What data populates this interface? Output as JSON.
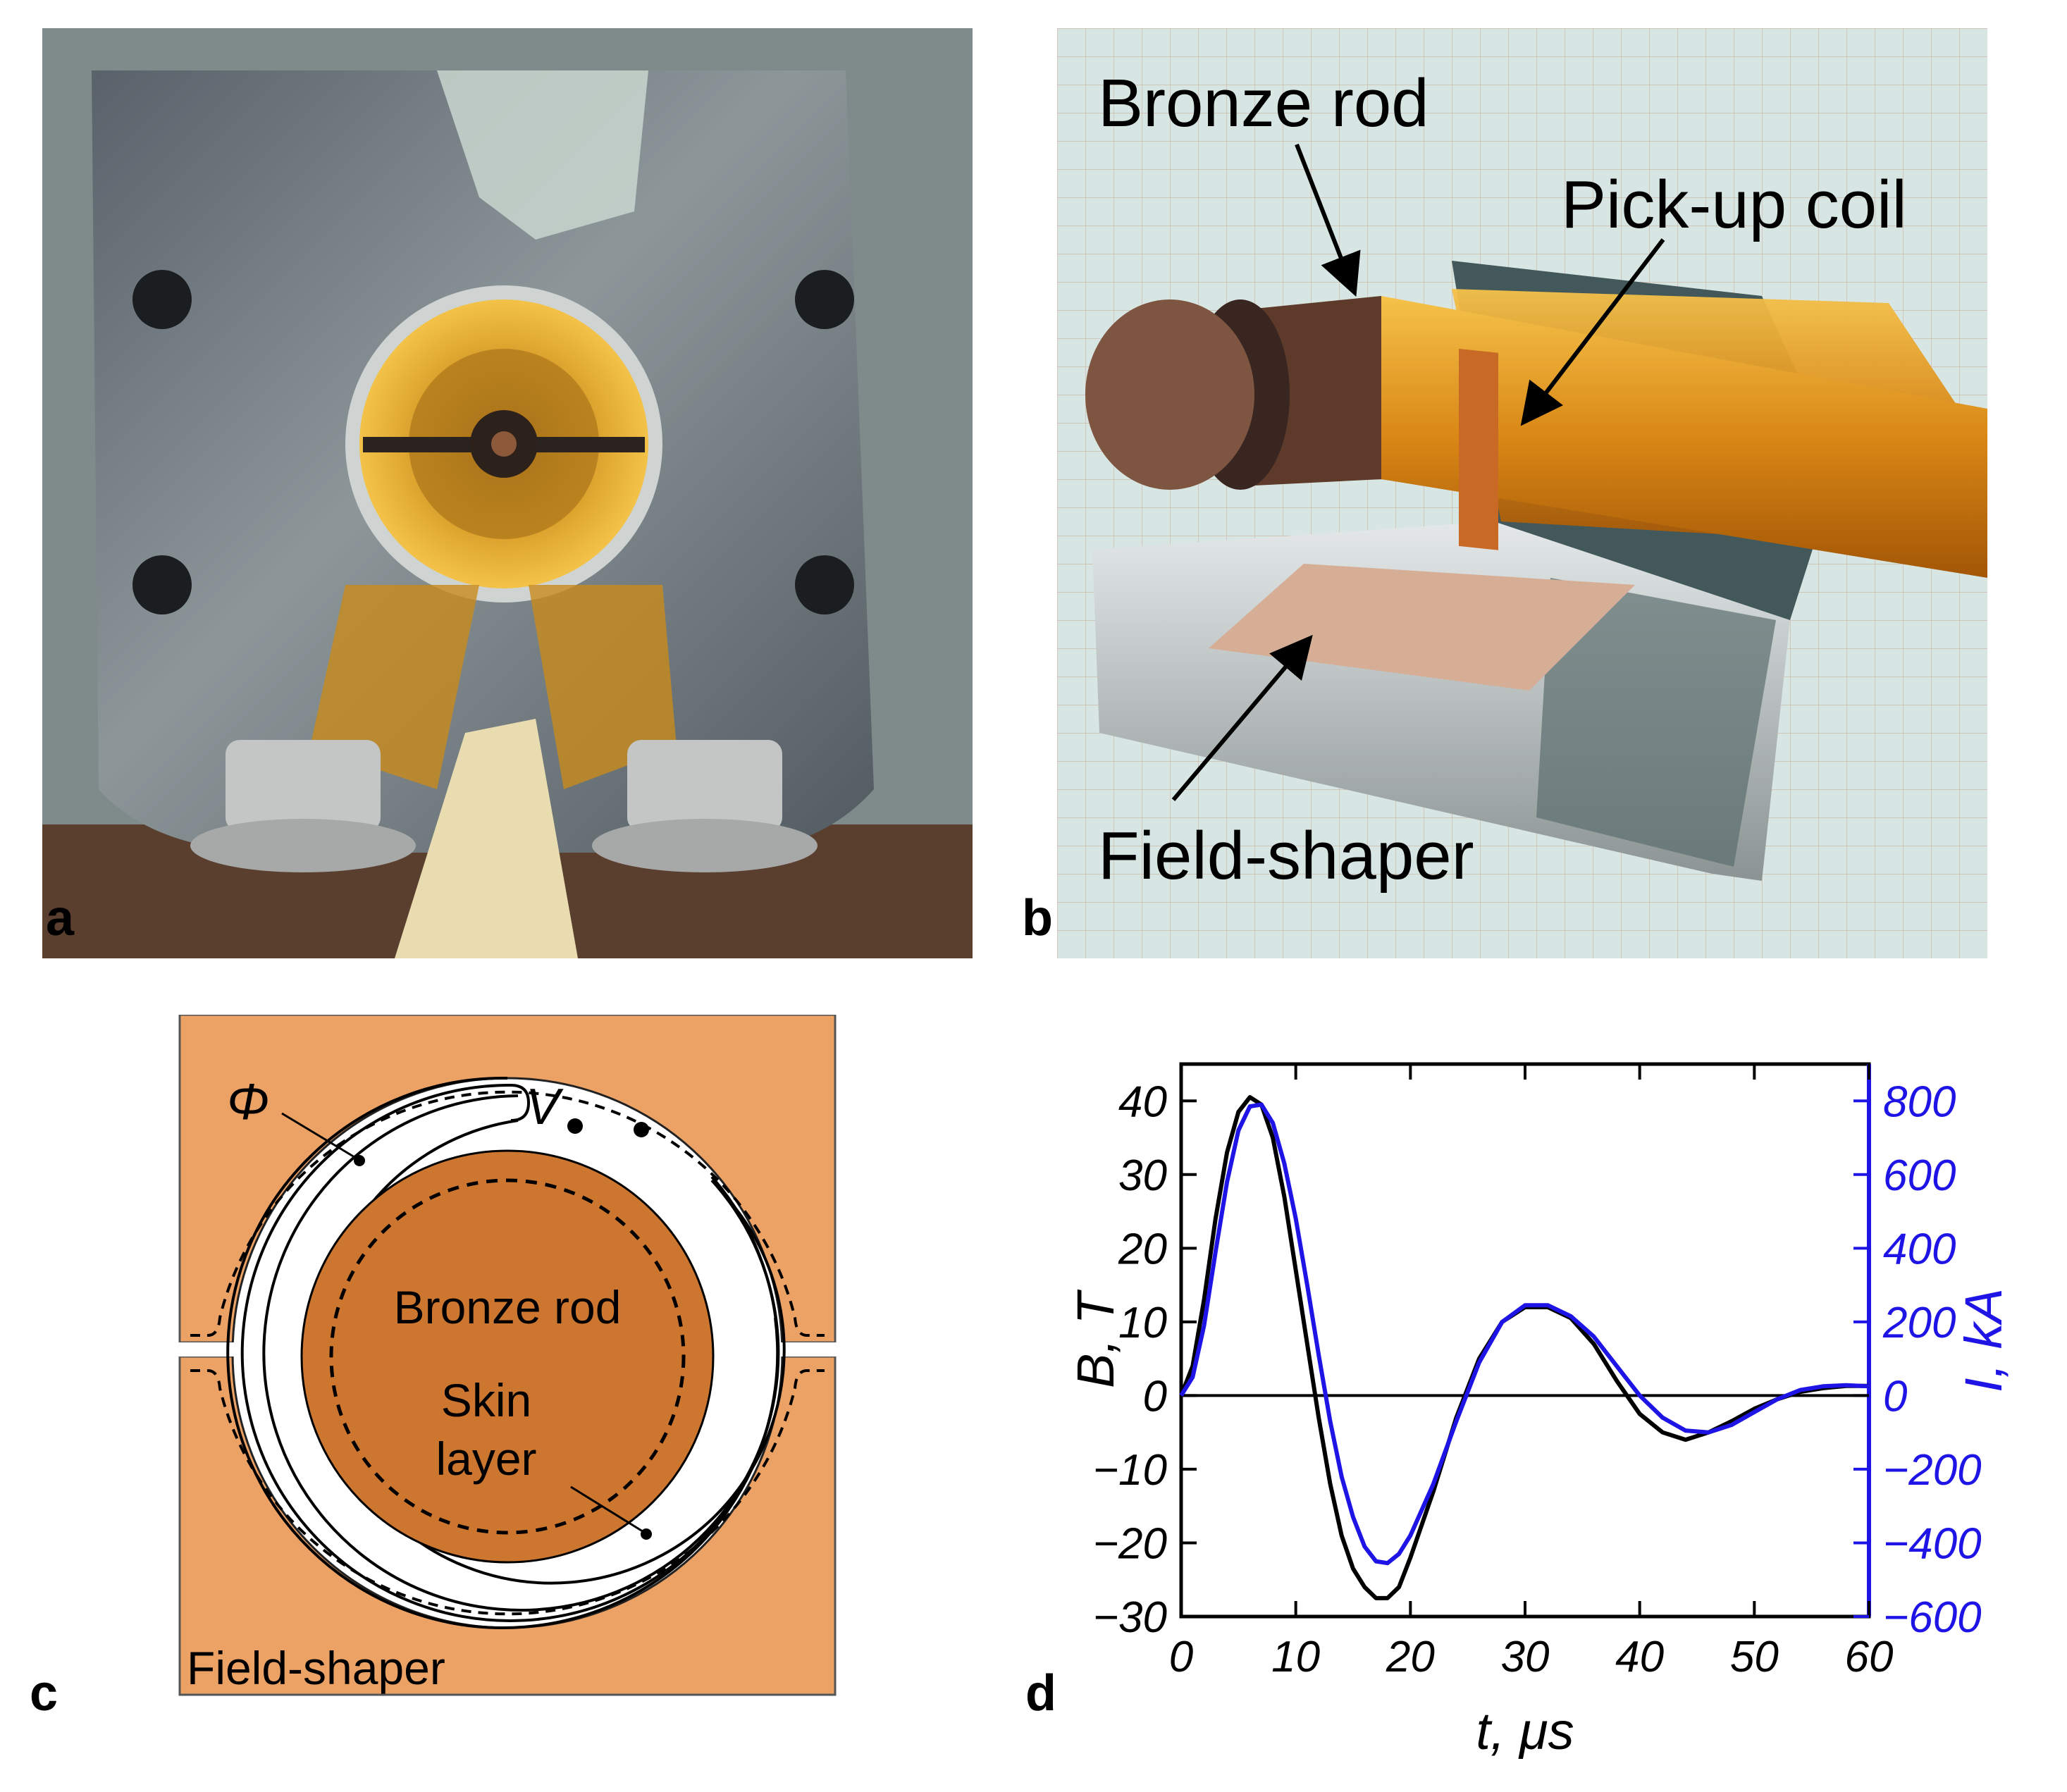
{
  "panels": {
    "a": {
      "letter": "a"
    },
    "b": {
      "letter": "b",
      "labels": {
        "rod": "Bronze rod",
        "coil": "Pick-up coil",
        "shaper": "Field-shaper"
      }
    },
    "c": {
      "letter": "c",
      "labels": {
        "flux": "Φ",
        "voltage": "V",
        "rod": "Bronze rod",
        "skin1": "Skin",
        "skin2": "layer",
        "shaper": "Field-shaper"
      }
    },
    "d": {
      "letter": "d"
    }
  },
  "colors": {
    "shaper": "#eca165",
    "rod": "#cd7630",
    "current": "#1f14e6",
    "field": "#000000"
  },
  "chart_data": {
    "type": "line",
    "xlabel": "t, μs",
    "ylabel_left": "B, T",
    "ylabel_right": "I, kA",
    "xlim": [
      0,
      60
    ],
    "ylim_left": [
      -30,
      45
    ],
    "ylim_right": [
      -600,
      900
    ],
    "x_ticks": [
      0,
      10,
      20,
      30,
      40,
      50,
      60
    ],
    "y_ticks_left": [
      -30,
      -20,
      -10,
      0,
      10,
      20,
      30,
      40
    ],
    "y_ticks_right": [
      -600,
      -400,
      -200,
      0,
      200,
      400,
      600,
      800
    ],
    "series": [
      {
        "axis": "left",
        "color": "#000000",
        "points": [
          [
            0,
            0
          ],
          [
            1,
            4
          ],
          [
            2,
            13
          ],
          [
            3,
            24
          ],
          [
            4,
            33
          ],
          [
            5,
            38.5
          ],
          [
            6,
            40.5
          ],
          [
            7,
            39.5
          ],
          [
            8,
            35
          ],
          [
            9,
            27
          ],
          [
            10,
            17
          ],
          [
            11,
            7
          ],
          [
            12,
            -3
          ],
          [
            13,
            -12
          ],
          [
            14,
            -19
          ],
          [
            15,
            -23.5
          ],
          [
            16,
            -26
          ],
          [
            17,
            -27.5
          ],
          [
            18,
            -27.5
          ],
          [
            19,
            -26
          ],
          [
            20,
            -22
          ],
          [
            22,
            -13
          ],
          [
            24,
            -3
          ],
          [
            26,
            5
          ],
          [
            28,
            10
          ],
          [
            30,
            12
          ],
          [
            32,
            12
          ],
          [
            34,
            10.5
          ],
          [
            36,
            7
          ],
          [
            38,
            2
          ],
          [
            40,
            -2.5
          ],
          [
            42,
            -5
          ],
          [
            44,
            -6
          ],
          [
            46,
            -5
          ],
          [
            48,
            -3.5
          ],
          [
            50,
            -1.8
          ],
          [
            52,
            -0.5
          ],
          [
            54,
            0.5
          ],
          [
            56,
            1
          ],
          [
            58,
            1.3
          ],
          [
            60,
            1.3
          ]
        ]
      },
      {
        "axis": "right",
        "color": "#1f14e6",
        "points": [
          [
            0,
            0
          ],
          [
            1,
            50
          ],
          [
            2,
            190
          ],
          [
            3,
            390
          ],
          [
            4,
            580
          ],
          [
            5,
            720
          ],
          [
            6,
            785
          ],
          [
            7,
            790
          ],
          [
            8,
            740
          ],
          [
            9,
            630
          ],
          [
            10,
            480
          ],
          [
            11,
            300
          ],
          [
            12,
            110
          ],
          [
            13,
            -70
          ],
          [
            14,
            -220
          ],
          [
            15,
            -330
          ],
          [
            16,
            -410
          ],
          [
            17,
            -450
          ],
          [
            18,
            -455
          ],
          [
            19,
            -430
          ],
          [
            20,
            -380
          ],
          [
            22,
            -240
          ],
          [
            24,
            -70
          ],
          [
            26,
            90
          ],
          [
            28,
            200
          ],
          [
            30,
            245
          ],
          [
            32,
            245
          ],
          [
            34,
            215
          ],
          [
            36,
            160
          ],
          [
            38,
            80
          ],
          [
            40,
            0
          ],
          [
            42,
            -60
          ],
          [
            44,
            -95
          ],
          [
            46,
            -100
          ],
          [
            48,
            -80
          ],
          [
            50,
            -45
          ],
          [
            52,
            -10
          ],
          [
            54,
            15
          ],
          [
            56,
            25
          ],
          [
            58,
            28
          ],
          [
            60,
            25
          ]
        ]
      }
    ]
  }
}
